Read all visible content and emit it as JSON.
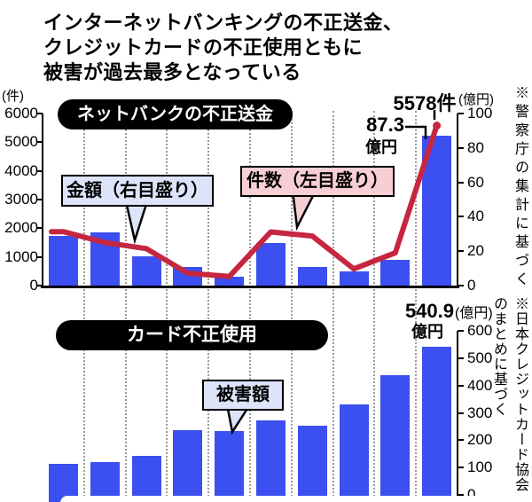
{
  "title_lines": [
    "インターネットバンキングの不正送金、",
    "クレジットカードの不正使用ともに",
    "被害が過去最多となっている"
  ],
  "top_chart": {
    "pill_title": "ネットバンクの不正送金",
    "left_axis": {
      "unit": "(件)",
      "ticks": [
        "6000",
        "5000",
        "4000",
        "3000",
        "2000",
        "1000",
        "0"
      ],
      "max": 6000
    },
    "right_axis": {
      "unit": "(億円)",
      "ticks": [
        "100",
        "80",
        "60",
        "40",
        "20",
        "0"
      ],
      "max": 100
    },
    "series_label_amount": "金額（右目盛り）",
    "series_label_count": "件数（左目盛り）",
    "peak_count_annotation": "5578件",
    "peak_amount_value": "87.3",
    "peak_amount_unit": "億円",
    "source_note": "※警察庁の集計に基づく"
  },
  "bottom_chart": {
    "pill_title": "カード不正使用",
    "right_axis": {
      "unit": "(億円)",
      "ticks": [
        "600",
        "500",
        "400",
        "300",
        "200",
        "100",
        "0"
      ],
      "max": 600
    },
    "series_label": "被害額",
    "peak_value": "540.9",
    "peak_unit": "億円",
    "source_note": "※日本クレジットカード協会のまとめに基づく"
  },
  "colors": {
    "bar_blue": "#3c4ff0",
    "line_red": "#c62640",
    "amount_box_bg": "#dde3f8",
    "count_box_bg": "#f7ced4",
    "damage_box_bg": "#dde3f8",
    "grid": "#9a9a9a",
    "axis": "#000000"
  },
  "chart_data": [
    {
      "type": "bar+line",
      "title": "ネットバンクの不正送金",
      "series": [
        {
          "name": "金額（右目盛り・億円）",
          "chart": "bar",
          "axis": "right",
          "values": [
            29,
            31,
            17,
            11,
            5,
            25,
            11,
            8,
            15,
            87.3
          ]
        },
        {
          "name": "件数（左目盛り・件）",
          "chart": "line",
          "axis": "left",
          "values": [
            1880,
            1500,
            1290,
            430,
            320,
            1870,
            1730,
            580,
            1140,
            5578
          ]
        }
      ],
      "left_ylim": [
        0,
        6000
      ],
      "right_ylim": [
        0,
        100
      ],
      "grid": "dotted-vertical",
      "annotations": [
        "5578件",
        "87.3億円"
      ],
      "source": "※警察庁の集計に基づく"
    },
    {
      "type": "bar",
      "title": "カード不正使用",
      "series": [
        {
          "name": "被害額（億円）",
          "chart": "bar",
          "axis": "right",
          "values": [
            115,
            121,
            142,
            236,
            235,
            274,
            253,
            330,
            437,
            540.9
          ]
        }
      ],
      "right_ylim": [
        0,
        600
      ],
      "grid": "dotted-vertical",
      "annotations": [
        "540.9億円"
      ],
      "source": "※日本クレジットカード協会のまとめに基づく"
    }
  ]
}
